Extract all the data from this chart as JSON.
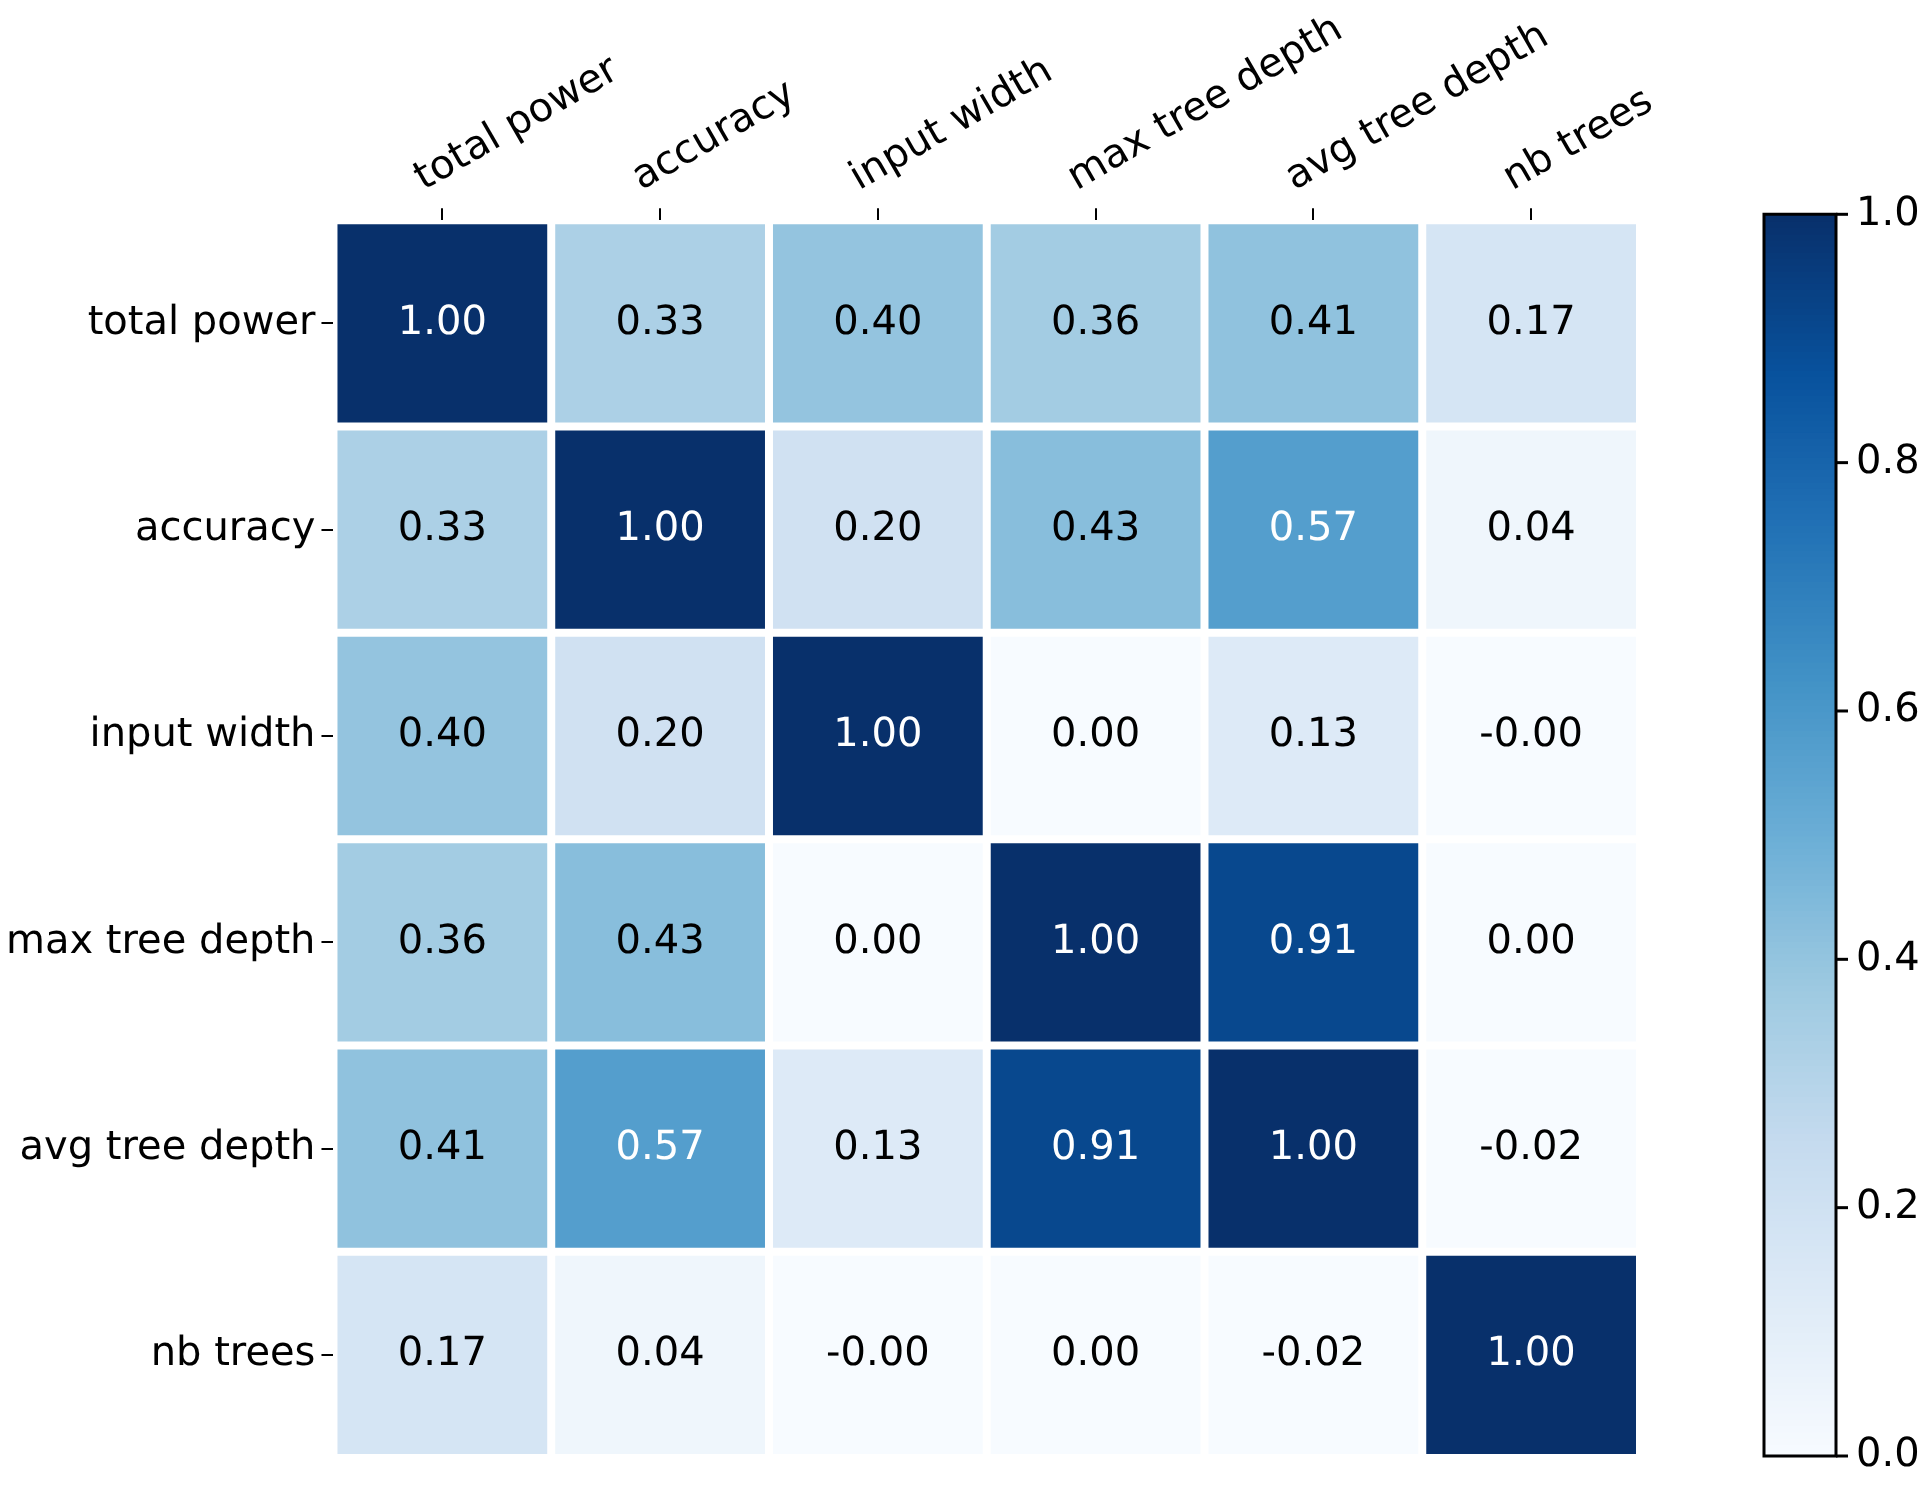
{
  "chart_data": {
    "type": "heatmap",
    "categories": [
      "total power",
      "accuracy",
      "input width",
      "max tree depth",
      "avg tree depth",
      "nb trees"
    ],
    "y_categories": [
      "total power",
      "accuracy",
      "input width",
      "max tree depth",
      "avg tree depth",
      "nb trees"
    ],
    "cells": [
      [
        1.0,
        0.33,
        0.4,
        0.36,
        0.41,
        0.17
      ],
      [
        0.33,
        1.0,
        0.2,
        0.43,
        0.57,
        0.04
      ],
      [
        0.4,
        0.2,
        1.0,
        0.0,
        0.13,
        0.0
      ],
      [
        0.36,
        0.43,
        0.0,
        1.0,
        0.91,
        0.0
      ],
      [
        0.41,
        0.57,
        0.13,
        0.91,
        1.0,
        -0.02
      ],
      [
        0.17,
        0.04,
        0.0,
        0.0,
        -0.02,
        1.0
      ]
    ],
    "cell_labels": [
      [
        "1.00",
        "0.33",
        "0.40",
        "0.36",
        "0.41",
        "0.17"
      ],
      [
        "0.33",
        "1.00",
        "0.20",
        "0.43",
        "0.57",
        "0.04"
      ],
      [
        "0.40",
        "0.20",
        "1.00",
        "0.00",
        "0.13",
        "-0.00"
      ],
      [
        "0.36",
        "0.43",
        "0.00",
        "1.00",
        "0.91",
        "0.00"
      ],
      [
        "0.41",
        "0.57",
        "0.13",
        "0.91",
        "1.00",
        "-0.02"
      ],
      [
        "0.17",
        "0.04",
        "-0.00",
        "0.00",
        "-0.02",
        "1.00"
      ]
    ],
    "clim": [
      0,
      1
    ],
    "cticks": [
      {
        "value": 0,
        "label": "0.0"
      },
      {
        "value": 0.2,
        "label": "0.2"
      },
      {
        "value": 0.4,
        "label": "0.4"
      },
      {
        "value": 0.6,
        "label": "0.6"
      },
      {
        "value": 0.8,
        "label": "0.8"
      },
      {
        "value": 1,
        "label": "1.0"
      }
    ]
  }
}
